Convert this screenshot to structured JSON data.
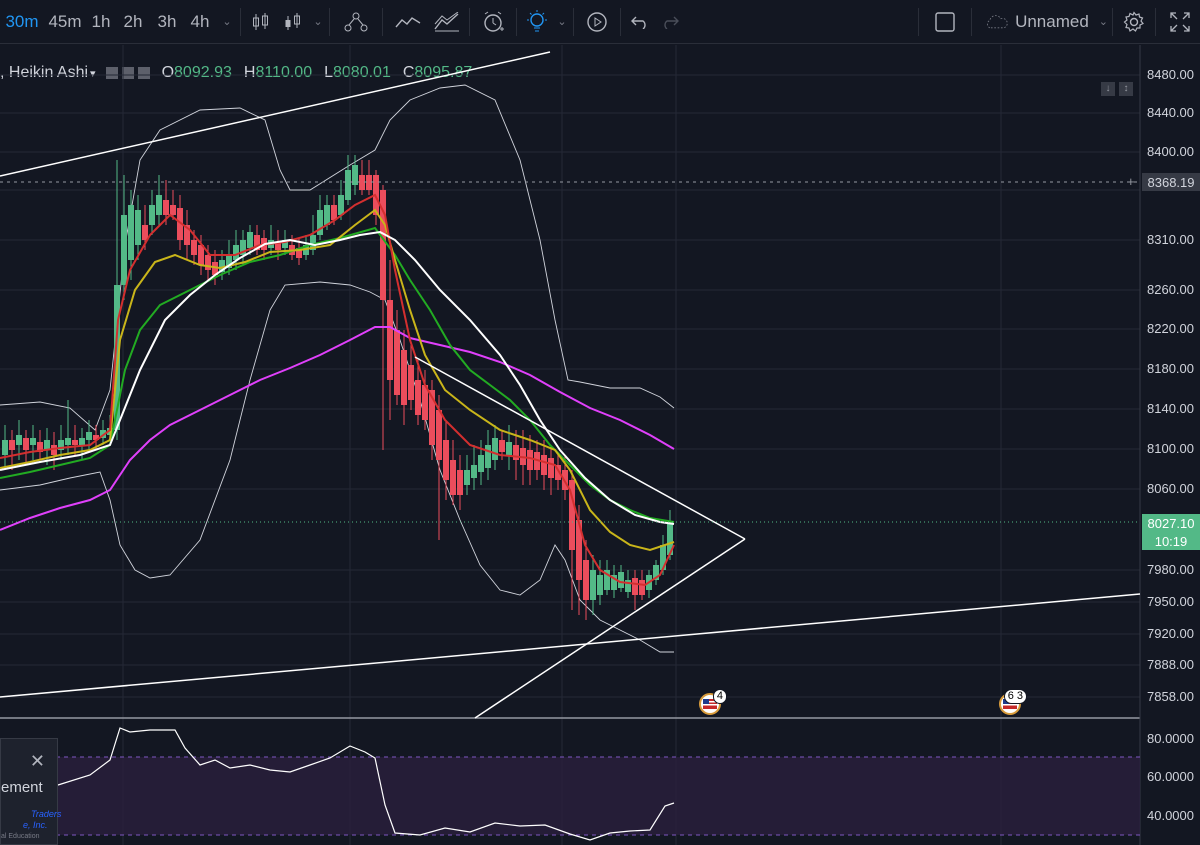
{
  "toolbar": {
    "intervals": [
      "30m",
      "45m",
      "1h",
      "2h",
      "3h",
      "4h"
    ],
    "active_interval": "30m",
    "layout_name": "Unnamed",
    "colors": {
      "active": "#2196f3"
    }
  },
  "legend": {
    "symbol_text": ", Heikin Ashi",
    "open_label": "O",
    "open_value": "8092.93",
    "high_label": "H",
    "high_value": "8110.00",
    "low_label": "L",
    "low_value": "8080.01",
    "close_label": "C",
    "close_value": "8095.87"
  },
  "price_axis": {
    "ticks": [
      "8480.00",
      "8440.00",
      "8400.00",
      "8310.00",
      "8260.00",
      "8220.00",
      "8180.00",
      "8140.00",
      "8100.00",
      "8060.00",
      "7980.00",
      "7950.00",
      "7920.00",
      "7888.00",
      "7858.00"
    ],
    "crosshair_price": "8368.19",
    "last_price": "8027.10",
    "countdown": "10:19",
    "colors": {
      "last_price_bg": "#53b987",
      "crosshair_bg": "#363a45"
    }
  },
  "indicator_axis": {
    "ticks": [
      "80.0000",
      "60.0000",
      "40.0000"
    ]
  },
  "events": {
    "badge_1": "4",
    "badge_2": "6 3"
  },
  "side_panel": {
    "close_glyph": "✕",
    "text": "ement",
    "brand_line1": "Traders",
    "brand_line2": "e, Inc.",
    "brand_line3": "al Education"
  }
}
